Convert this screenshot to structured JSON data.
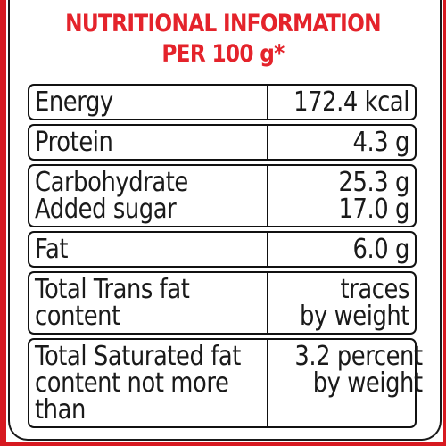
{
  "header": {
    "title_line1": "NUTRITIONAL INFORMATION",
    "title_line2": "PER 100 g*"
  },
  "colors": {
    "title_red": "#e4232b",
    "border_red": "#d71920",
    "text": "#1a1a1a"
  },
  "rows": [
    {
      "name": [
        "Energy"
      ],
      "value": [
        "172.4 kcal"
      ]
    },
    {
      "name": [
        "Protein"
      ],
      "value": [
        "4.3 g"
      ]
    },
    {
      "name": [
        "Carbohydrate",
        "Added sugar"
      ],
      "value": [
        "25.3 g",
        "17.0 g"
      ]
    },
    {
      "name": [
        "Fat"
      ],
      "value": [
        "6.0 g"
      ]
    },
    {
      "name": [
        "Total Trans fat",
        "content"
      ],
      "value": [
        "traces",
        "by weight"
      ]
    },
    {
      "name": [
        "Total Saturated fat",
        "content not more",
        "than"
      ],
      "value": [
        "3.2 percent",
        "by weight"
      ]
    }
  ]
}
